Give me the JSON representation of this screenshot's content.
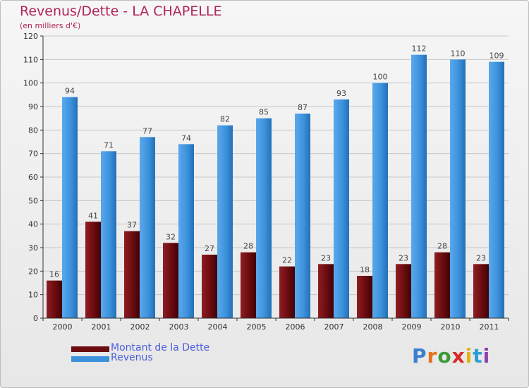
{
  "chart_data": {
    "type": "bar",
    "title": "Revenus/Dette - LA CHAPELLE",
    "subtitle": "(en milliers d'€)",
    "categories": [
      "2000",
      "2001",
      "2002",
      "2003",
      "2004",
      "2005",
      "2006",
      "2007",
      "2008",
      "2009",
      "2010",
      "2011"
    ],
    "series": [
      {
        "name": "Montant de la Dette",
        "values": [
          16,
          41,
          37,
          32,
          27,
          28,
          22,
          23,
          18,
          23,
          28,
          23
        ],
        "color": "#6b0b0f"
      },
      {
        "name": "Revenus",
        "values": [
          94,
          71,
          77,
          74,
          82,
          85,
          87,
          93,
          100,
          112,
          110,
          109
        ],
        "color": "#3d92dc"
      }
    ],
    "ylim": [
      0,
      120
    ],
    "yticks": [
      0,
      10,
      20,
      30,
      40,
      50,
      60,
      70,
      80,
      90,
      100,
      110,
      120
    ],
    "grid": true,
    "legend": "bottom-left",
    "logo": "Proxiti"
  }
}
